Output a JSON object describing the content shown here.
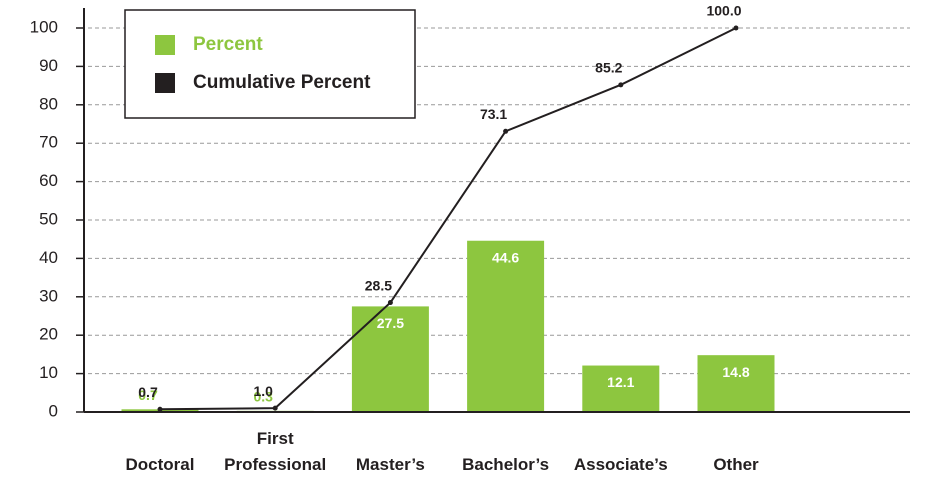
{
  "chart_data": {
    "type": "bar",
    "categories": [
      "Doctoral",
      "First Professional",
      "Master’s",
      "Bachelor’s",
      "Associate’s",
      "Other"
    ],
    "series": [
      {
        "name": "Percent",
        "type": "bar",
        "color": "#8dc63f",
        "values": [
          0.7,
          0.3,
          27.5,
          44.6,
          12.1,
          14.8
        ]
      },
      {
        "name": "Cumulative Percent",
        "type": "line",
        "color": "#231f20",
        "values": [
          0.7,
          1.0,
          28.5,
          73.1,
          85.2,
          100.0
        ],
        "value_labels": [
          "0.7",
          "1.0",
          "28.5",
          "73.1",
          "85.2",
          "100.0"
        ]
      }
    ],
    "ylim": [
      0,
      100
    ],
    "yticks": [
      0,
      10,
      20,
      30,
      40,
      50,
      60,
      70,
      80,
      90,
      100
    ],
    "grid": true,
    "legend": "top-left"
  }
}
